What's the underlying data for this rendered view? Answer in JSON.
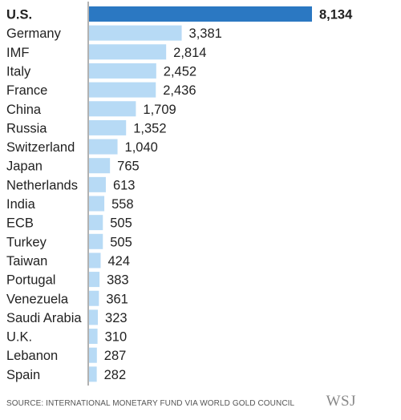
{
  "chart_data": {
    "type": "bar",
    "orientation": "horizontal",
    "categories": [
      "U.S.",
      "Germany",
      "IMF",
      "Italy",
      "France",
      "China",
      "Russia",
      "Switzerland",
      "Japan",
      "Netherlands",
      "India",
      "ECB",
      "Turkey",
      "Taiwan",
      "Portugal",
      "Venezuela",
      "Saudi Arabia",
      "U.K.",
      "Lebanon",
      "Spain"
    ],
    "values": [
      8134,
      3381,
      2814,
      2452,
      2436,
      1709,
      1352,
      1040,
      765,
      613,
      558,
      505,
      505,
      424,
      383,
      361,
      323,
      310,
      287,
      282
    ],
    "value_labels": [
      "8,134",
      "3,381",
      "2,814",
      "2,452",
      "2,436",
      "1,709",
      "1,352",
      "1,040",
      "765",
      "613",
      "558",
      "505",
      "505",
      "424",
      "383",
      "361",
      "323",
      "310",
      "287",
      "282"
    ],
    "highlight_category": "U.S.",
    "title": "",
    "xlabel": "",
    "ylabel": "",
    "colors": {
      "highlight_bar": "#2b78c2",
      "bar": "#b7daf5",
      "axis": "#666666",
      "text": "#222222"
    }
  },
  "footer": {
    "source": "SOURCE: INTERNATIONAL MONETARY FUND VIA WORLD GOLD COUNCIL",
    "logo": "WSJ"
  }
}
